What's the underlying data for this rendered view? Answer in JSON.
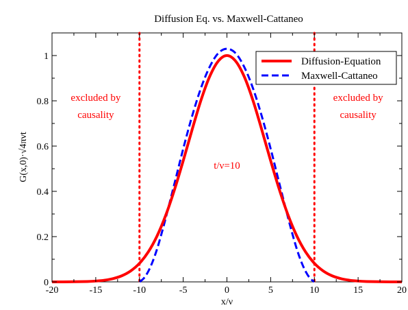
{
  "chart_data": {
    "type": "line",
    "title": "Diffusion Eq. vs. Maxwell-Cattaneo",
    "xlabel": "x/ν",
    "ylabel": "G(x,0)·√4πνt",
    "xlim": [
      -20,
      20
    ],
    "ylim": [
      0,
      1.1
    ],
    "xticks": [
      -20,
      -15,
      -10,
      -5,
      0,
      5,
      10,
      15,
      20
    ],
    "yticks": [
      0,
      0.2,
      0.4,
      0.6,
      0.8,
      1
    ],
    "grid": false,
    "legend_position": "top-right",
    "series": [
      {
        "name": "Diffusion-Equation",
        "color": "#ff0000",
        "style": "solid",
        "x": [
          -20,
          -18,
          -16,
          -15,
          -14,
          -13,
          -12,
          -11,
          -10,
          -9,
          -8,
          -7,
          -6,
          -5,
          -4,
          -3,
          -2,
          -1,
          0,
          1,
          2,
          3,
          4,
          5,
          6,
          7,
          8,
          9,
          10,
          11,
          12,
          13,
          14,
          15,
          16,
          18,
          20
        ],
        "y": [
          0.0,
          0.0003,
          0.0017,
          0.0036,
          0.0074,
          0.0147,
          0.0273,
          0.0486,
          0.082,
          0.132,
          0.202,
          0.294,
          0.407,
          0.535,
          0.67,
          0.799,
          0.905,
          0.975,
          1.0,
          0.975,
          0.905,
          0.799,
          0.67,
          0.535,
          0.407,
          0.294,
          0.202,
          0.132,
          0.082,
          0.0486,
          0.0273,
          0.0147,
          0.0074,
          0.0036,
          0.0017,
          0.0003,
          0.0
        ]
      },
      {
        "name": "Maxwell-Cattaneo",
        "color": "#0000ff",
        "style": "dashed",
        "x": [
          -10,
          -9.5,
          -9,
          -8.5,
          -8,
          -7.5,
          -7,
          -6,
          -5,
          -4,
          -3,
          -2,
          -1,
          0,
          1,
          2,
          3,
          4,
          5,
          6,
          7,
          7.5,
          8,
          8.5,
          9,
          9.5,
          10
        ],
        "y": [
          0.0,
          0.016,
          0.046,
          0.089,
          0.144,
          0.21,
          0.282,
          0.434,
          0.588,
          0.73,
          0.853,
          0.948,
          1.01,
          1.03,
          1.01,
          0.948,
          0.853,
          0.73,
          0.588,
          0.434,
          0.282,
          0.21,
          0.144,
          0.089,
          0.046,
          0.016,
          0.0
        ]
      }
    ],
    "vertical_markers": [
      {
        "x": -10,
        "color": "#ff0000",
        "style": "dotted"
      },
      {
        "x": 10,
        "color": "#ff0000",
        "style": "dotted"
      }
    ],
    "annotations": [
      {
        "id": "left-excluded",
        "lines": [
          "excluded by",
          "causality"
        ],
        "x": -15,
        "y": 0.8,
        "color": "#ff0000"
      },
      {
        "id": "right-excluded",
        "lines": [
          "excluded by",
          "causality"
        ],
        "x": 15,
        "y": 0.8,
        "color": "#ff0000"
      },
      {
        "id": "time-label",
        "lines": [
          "t/ν=10"
        ],
        "x": 0,
        "y": 0.5,
        "color": "#ff0000"
      }
    ]
  }
}
